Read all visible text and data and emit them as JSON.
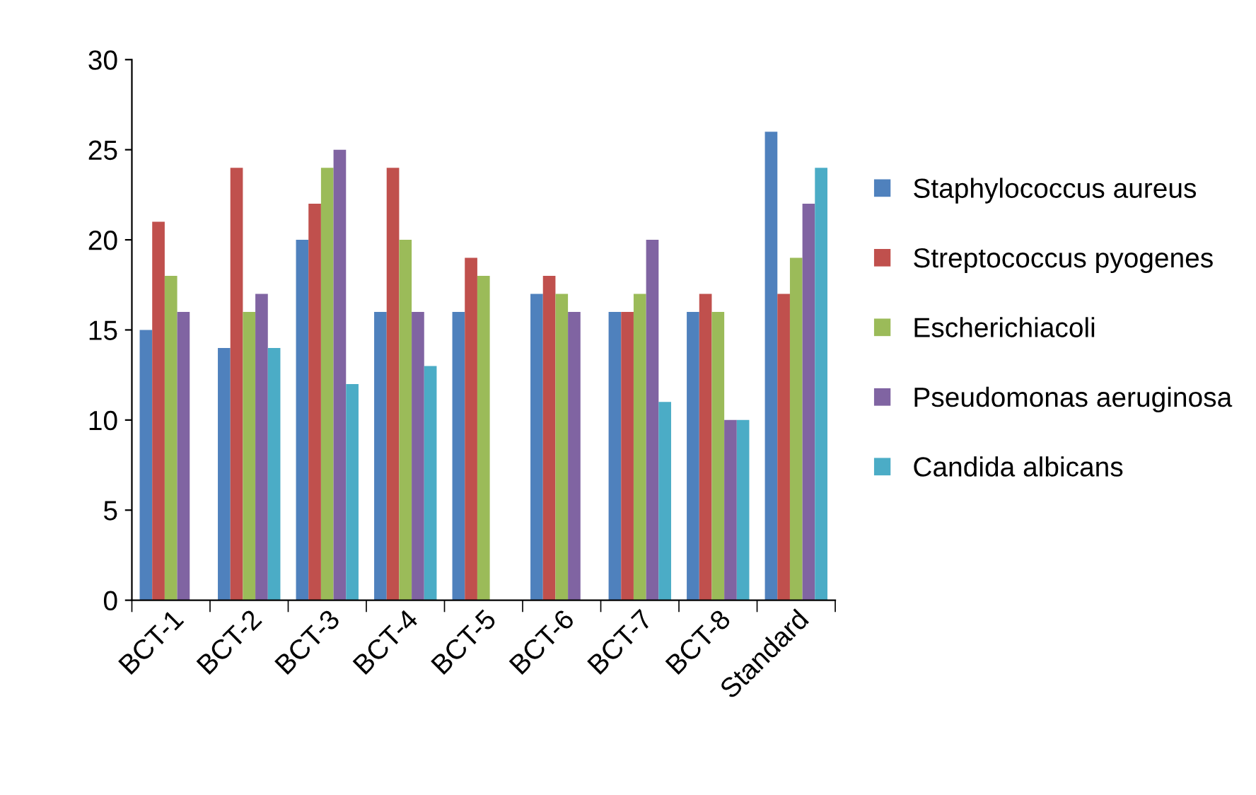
{
  "chart_data": {
    "type": "bar",
    "categories": [
      "BCT-1",
      "BCT-2",
      "BCT-3",
      "BCT-4",
      "BCT-5",
      "BCT-6",
      "BCT-7",
      "BCT-8",
      "Standard"
    ],
    "series": [
      {
        "name": "Staphylococcus aureus",
        "color": "#4f81bd",
        "values": [
          15,
          14,
          20,
          16,
          16,
          17,
          16,
          16,
          26
        ]
      },
      {
        "name": "Streptococcus pyogenes",
        "color": "#c0504d",
        "values": [
          21,
          24,
          22,
          24,
          19,
          18,
          16,
          17,
          17
        ]
      },
      {
        "name": "Escherichiacoli",
        "color": "#9bbb59",
        "values": [
          18,
          16,
          24,
          20,
          18,
          17,
          17,
          16,
          19
        ]
      },
      {
        "name": "Pseudomonas aeruginosa",
        "color": "#8064a2",
        "values": [
          16,
          17,
          25,
          16,
          null,
          16,
          20,
          10,
          22
        ]
      },
      {
        "name": "Candida albicans",
        "color": "#4bacc6",
        "values": [
          null,
          14,
          12,
          13,
          null,
          null,
          11,
          10,
          24
        ]
      }
    ],
    "ylim": [
      0,
      30
    ],
    "yticks": [
      0,
      5,
      10,
      15,
      20,
      25,
      30
    ],
    "grid": false,
    "legend": "right"
  }
}
